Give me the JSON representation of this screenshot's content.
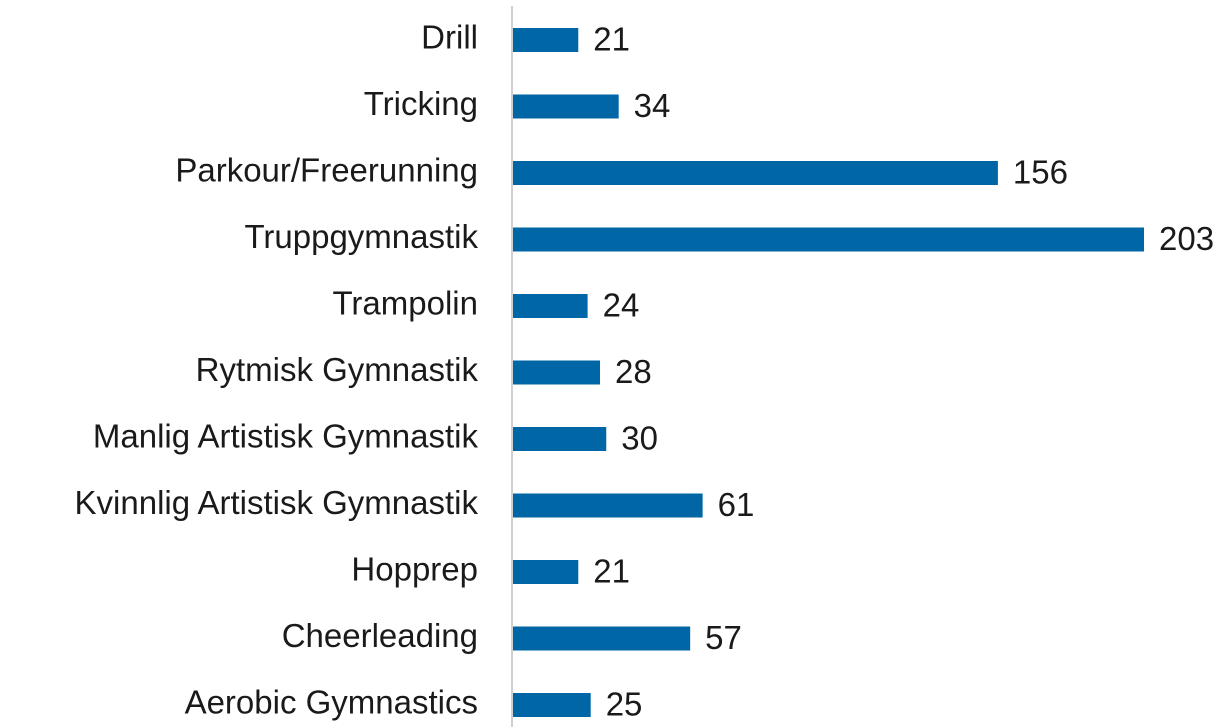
{
  "chart_data": {
    "type": "bar",
    "orientation": "horizontal",
    "categories": [
      "Drill",
      "Tricking",
      "Parkour/Freerunning",
      "Truppgymnastik",
      "Trampolin",
      "Rytmisk Gymnastik",
      "Manlig Artistisk Gymnastik",
      "Kvinnlig Artistisk Gymnastik",
      "Hopprep",
      "Cheerleading",
      "Aerobic Gymnastics"
    ],
    "values": [
      21,
      34,
      156,
      203,
      24,
      28,
      30,
      61,
      21,
      57,
      25
    ],
    "color": "#0066a6"
  }
}
